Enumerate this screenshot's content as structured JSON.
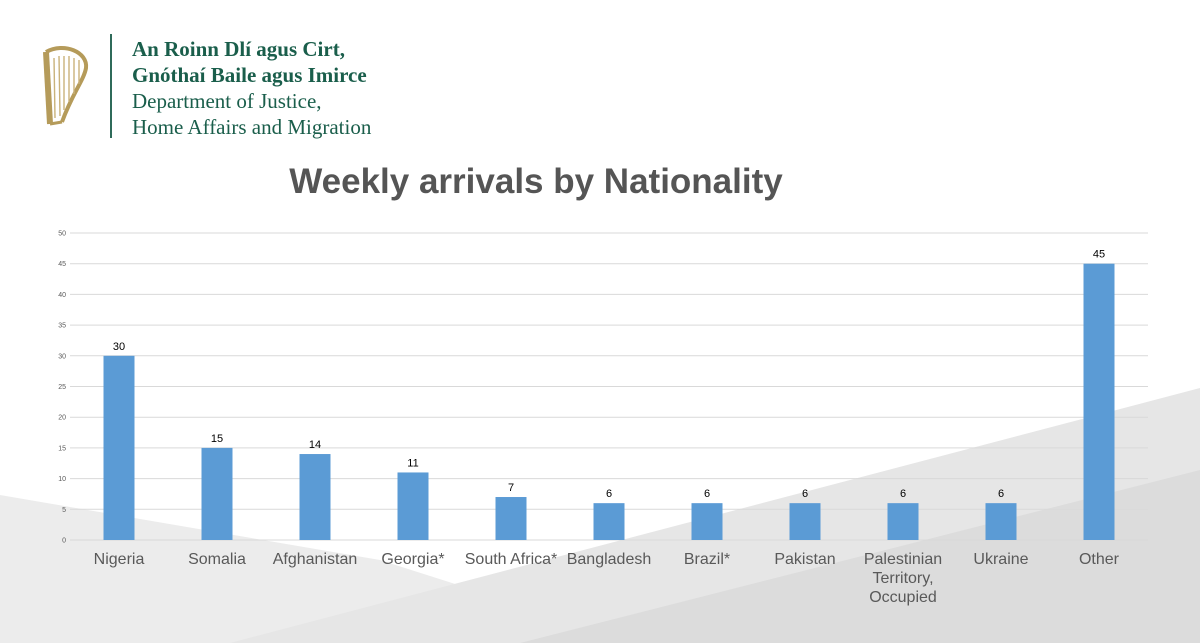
{
  "header": {
    "line1": "An Roinn Dlí agus Cirt,",
    "line2": "Gnóthaí Baile agus Imirce",
    "line3": "Department of Justice,",
    "line4": "Home Affairs and Migration",
    "logo_icon": "harp-icon"
  },
  "chart_data": {
    "type": "bar",
    "title": "Weekly arrivals by Nationality",
    "xlabel": "",
    "ylabel": "",
    "categories": [
      "Nigeria",
      "Somalia",
      "Afghanistan",
      "Georgia*",
      "South Africa*",
      "Bangladesh",
      "Brazil*",
      "Pakistan",
      "Palestinian Territory, Occupied",
      "Ukraine",
      "Other"
    ],
    "values": [
      30,
      15,
      14,
      11,
      7,
      6,
      6,
      6,
      6,
      6,
      45
    ],
    "ylim": [
      0,
      50
    ],
    "yticks": [
      0,
      5,
      10,
      15,
      20,
      25,
      30,
      35,
      40,
      45,
      50
    ],
    "grid": true,
    "data_labels": true,
    "bar_color": "#5b9bd5",
    "grid_color": "#d9d9d9"
  }
}
